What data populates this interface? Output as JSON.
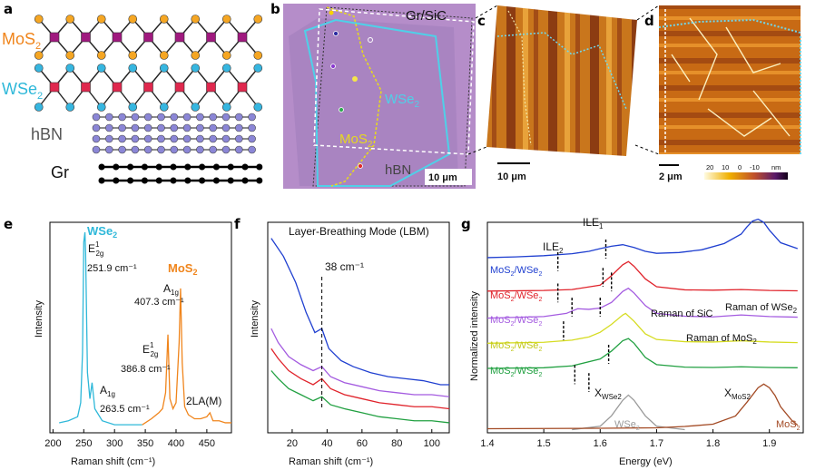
{
  "panels": {
    "a": "a",
    "b": "b",
    "c": "c",
    "d": "d",
    "e": "e",
    "f": "f",
    "g": "g"
  },
  "colors": {
    "mos2": "#f0851c",
    "wse2": "#2fb8d9",
    "mo_atom": "#a0197f",
    "w_atom": "#e0284e",
    "s_atom": "#f5a623",
    "se_atom": "#36b6e0",
    "bn": "#8b86d6",
    "gr": "#000000",
    "blue": "#1f3fd0",
    "red": "#e0232b",
    "purple": "#a45be0",
    "yellow": "#d6dc22",
    "green": "#21a041",
    "gray": "#9a9a9a",
    "brown": "#a34a24"
  },
  "panel_a": {
    "layers": [
      "MoS",
      "WSe",
      "hBN",
      "Gr"
    ],
    "sub": "2"
  },
  "panel_b": {
    "labels": {
      "grsic": "Gr/SiC",
      "wse2": "WSe",
      "mos2": "MoS",
      "hbn": "hBN",
      "sub": "2"
    },
    "scalebar": "10 μm"
  },
  "panel_c": {
    "scalebar": "10 μm"
  },
  "panel_d": {
    "scalebar": "2 μm",
    "colorbar_ticks": [
      "20",
      "10",
      "0",
      "-10",
      "nm"
    ]
  },
  "chart_data": [
    {
      "type": "line",
      "panel": "e",
      "xlabel": "Raman shift (cm⁻¹)",
      "ylabel": "Intensity",
      "xlim": [
        195,
        490
      ],
      "xticks": [
        200,
        250,
        300,
        350,
        400,
        450
      ],
      "series": [
        {
          "name": "WSe2",
          "x": [
            210,
            225,
            240,
            245,
            248,
            250,
            251.9,
            253,
            256,
            260,
            263.5,
            268,
            280,
            300,
            320,
            345
          ],
          "y": [
            0.05,
            0.06,
            0.08,
            0.15,
            0.4,
            0.95,
            1.0,
            0.9,
            0.3,
            0.17,
            0.25,
            0.12,
            0.06,
            0.04,
            0.04,
            0.04
          ]
        },
        {
          "name": "MoS2",
          "x": [
            345,
            360,
            372,
            378,
            383,
            386.8,
            390,
            395,
            400,
            405,
            407.3,
            410,
            414,
            420,
            430,
            440,
            450,
            455,
            460,
            470,
            480,
            490
          ],
          "y": [
            0.04,
            0.07,
            0.1,
            0.12,
            0.2,
            0.49,
            0.17,
            0.12,
            0.15,
            0.45,
            0.72,
            0.35,
            0.13,
            0.09,
            0.07,
            0.07,
            0.08,
            0.1,
            0.06,
            0.06,
            0.05,
            0.05
          ]
        }
      ],
      "annotations": {
        "wse2_title": "WSe",
        "mos2_title": "MoS",
        "sub": "2",
        "e2g_w": "E",
        "e2g_sup": "1",
        "e2g_sub": "2g",
        "e2g_w_val": "251.9 cm⁻¹",
        "a1g_w": "A",
        "a1g_sub": "1g",
        "a1g_w_val": "263.5 cm⁻¹",
        "a1g_m": "A",
        "a1g_m_sub": "1g",
        "a1g_m_val": "407.3 cm⁻¹",
        "e2g_m": "E",
        "e2g_m_sup": "1",
        "e2g_m_sub": "2g",
        "e2g_m_val": "386.8 cm⁻¹",
        "la": "2LA(M)"
      }
    },
    {
      "type": "line",
      "panel": "f",
      "title": "Layer-Breathing Mode (LBM)",
      "xlabel": "Raman shift (cm⁻¹)",
      "ylabel": "Intensity",
      "xlim": [
        6,
        110
      ],
      "xticks": [
        20,
        40,
        60,
        80,
        100
      ],
      "peak_label": "38 cm⁻¹",
      "peak_x": 37,
      "series": [
        {
          "name": "blue",
          "x": [
            8,
            15,
            22,
            28,
            33,
            37,
            41,
            48,
            55,
            65,
            75,
            85,
            95,
            105,
            110
          ],
          "y": [
            0.97,
            0.88,
            0.75,
            0.6,
            0.5,
            0.52,
            0.42,
            0.36,
            0.33,
            0.3,
            0.28,
            0.27,
            0.26,
            0.24,
            0.24
          ]
        },
        {
          "name": "purple",
          "x": [
            8,
            12,
            18,
            25,
            32,
            37,
            42,
            50,
            60,
            70,
            80,
            90,
            100,
            110
          ],
          "y": [
            0.52,
            0.45,
            0.38,
            0.34,
            0.31,
            0.33,
            0.28,
            0.25,
            0.23,
            0.21,
            0.2,
            0.19,
            0.19,
            0.18
          ]
        },
        {
          "name": "red",
          "x": [
            8,
            12,
            18,
            25,
            32,
            37,
            42,
            50,
            60,
            70,
            80,
            90,
            100,
            110
          ],
          "y": [
            0.42,
            0.37,
            0.31,
            0.27,
            0.24,
            0.27,
            0.22,
            0.19,
            0.17,
            0.15,
            0.14,
            0.13,
            0.13,
            0.12
          ]
        },
        {
          "name": "green",
          "x": [
            8,
            12,
            18,
            25,
            32,
            37,
            42,
            50,
            60,
            70,
            80,
            90,
            100,
            110
          ],
          "y": [
            0.31,
            0.27,
            0.22,
            0.19,
            0.16,
            0.18,
            0.14,
            0.12,
            0.1,
            0.08,
            0.07,
            0.06,
            0.06,
            0.05
          ]
        }
      ]
    },
    {
      "type": "line",
      "panel": "g",
      "xlabel": "Energy (eV)",
      "ylabel": "Normalized intensity",
      "xlim": [
        1.4,
        1.96
      ],
      "xticks": [
        1.4,
        1.5,
        1.6,
        1.7,
        1.8,
        1.9
      ],
      "series": [
        {
          "name": "MoS2/WSe2 (blue)",
          "offset": 5.45,
          "x": [
            1.4,
            1.45,
            1.5,
            1.55,
            1.58,
            1.6,
            1.62,
            1.64,
            1.66,
            1.68,
            1.7,
            1.74,
            1.78,
            1.82,
            1.85,
            1.86,
            1.87,
            1.88,
            1.89,
            1.9,
            1.92,
            1.95
          ],
          "y": [
            0.02,
            0.04,
            0.07,
            0.12,
            0.18,
            0.25,
            0.31,
            0.35,
            0.28,
            0.18,
            0.13,
            0.15,
            0.22,
            0.38,
            0.62,
            0.8,
            0.95,
            1.0,
            0.92,
            0.72,
            0.4,
            0.25
          ]
        },
        {
          "name": "MoS2/WSe2 (red)",
          "offset": 4.4,
          "x": [
            1.4,
            1.5,
            1.55,
            1.6,
            1.62,
            1.64,
            1.65,
            1.66,
            1.68,
            1.7,
            1.75,
            1.8,
            1.85,
            1.9,
            1.95
          ],
          "y": [
            0.01,
            0.03,
            0.06,
            0.2,
            0.5,
            0.85,
            0.95,
            0.8,
            0.4,
            0.15,
            0.05,
            0.04,
            0.06,
            0.03,
            0.02
          ]
        },
        {
          "name": "MoS2/WSe2 (purple)",
          "offset": 3.55,
          "x": [
            1.4,
            1.5,
            1.54,
            1.56,
            1.58,
            1.6,
            1.62,
            1.64,
            1.65,
            1.66,
            1.68,
            1.7,
            1.75,
            1.8,
            1.85,
            1.9,
            1.95
          ],
          "y": [
            0.0,
            0.05,
            0.15,
            0.3,
            0.28,
            0.32,
            0.5,
            0.85,
            0.95,
            0.8,
            0.4,
            0.15,
            0.06,
            0.04,
            0.1,
            0.05,
            0.03
          ]
        },
        {
          "name": "MoS2/WSe2 (yellow)",
          "offset": 2.75,
          "x": [
            1.4,
            1.5,
            1.55,
            1.58,
            1.6,
            1.62,
            1.64,
            1.645,
            1.66,
            1.68,
            1.7,
            1.75,
            1.8,
            1.85,
            1.9,
            1.95
          ],
          "y": [
            0.0,
            0.03,
            0.1,
            0.2,
            0.35,
            0.6,
            0.9,
            0.95,
            0.7,
            0.3,
            0.12,
            0.05,
            0.04,
            0.08,
            0.04,
            0.02
          ]
        },
        {
          "name": "MoS2/WSe2 (green)",
          "offset": 1.95,
          "x": [
            1.4,
            1.5,
            1.55,
            1.6,
            1.62,
            1.64,
            1.65,
            1.66,
            1.68,
            1.7,
            1.75,
            1.8,
            1.85,
            1.9,
            1.95
          ],
          "y": [
            0.0,
            0.02,
            0.08,
            0.3,
            0.55,
            0.88,
            0.95,
            0.8,
            0.35,
            0.12,
            0.04,
            0.03,
            0.05,
            0.03,
            0.02
          ]
        },
        {
          "name": "WSe2",
          "offset": 0,
          "x": [
            1.55,
            1.6,
            1.62,
            1.64,
            1.65,
            1.66,
            1.68,
            1.7,
            1.75
          ],
          "y": [
            0.0,
            0.1,
            0.4,
            0.85,
            1.0,
            0.85,
            0.4,
            0.1,
            0.0
          ]
        },
        {
          "name": "MoS2",
          "offset": 0,
          "x": [
            1.4,
            1.6,
            1.7,
            1.75,
            1.8,
            1.84,
            1.86,
            1.88,
            1.89,
            1.9,
            1.91,
            1.92,
            1.94,
            1.95
          ],
          "y": [
            0.02,
            0.03,
            0.04,
            0.07,
            0.12,
            0.3,
            0.6,
            0.92,
            1.0,
            0.92,
            0.75,
            0.5,
            0.2,
            0.1
          ]
        }
      ],
      "labels": {
        "mos2_wse2": "MoS",
        "wse2_part": "/WSe",
        "sub": "2",
        "ile1": "ILE",
        "ile1_sub": "1",
        "ile2": "ILE",
        "ile2_sub": "2",
        "raman_sic": "Raman of SiC",
        "raman_wse2": "Raman of WSe",
        "raman_mos2": "Raman of MoS",
        "x_wse2": "X",
        "x_wse2_sub": "WSe2",
        "x_mos2": "X",
        "x_mos2_sub": "MoS2",
        "wse2": "WSe",
        "mos2": "MoS"
      }
    }
  ]
}
